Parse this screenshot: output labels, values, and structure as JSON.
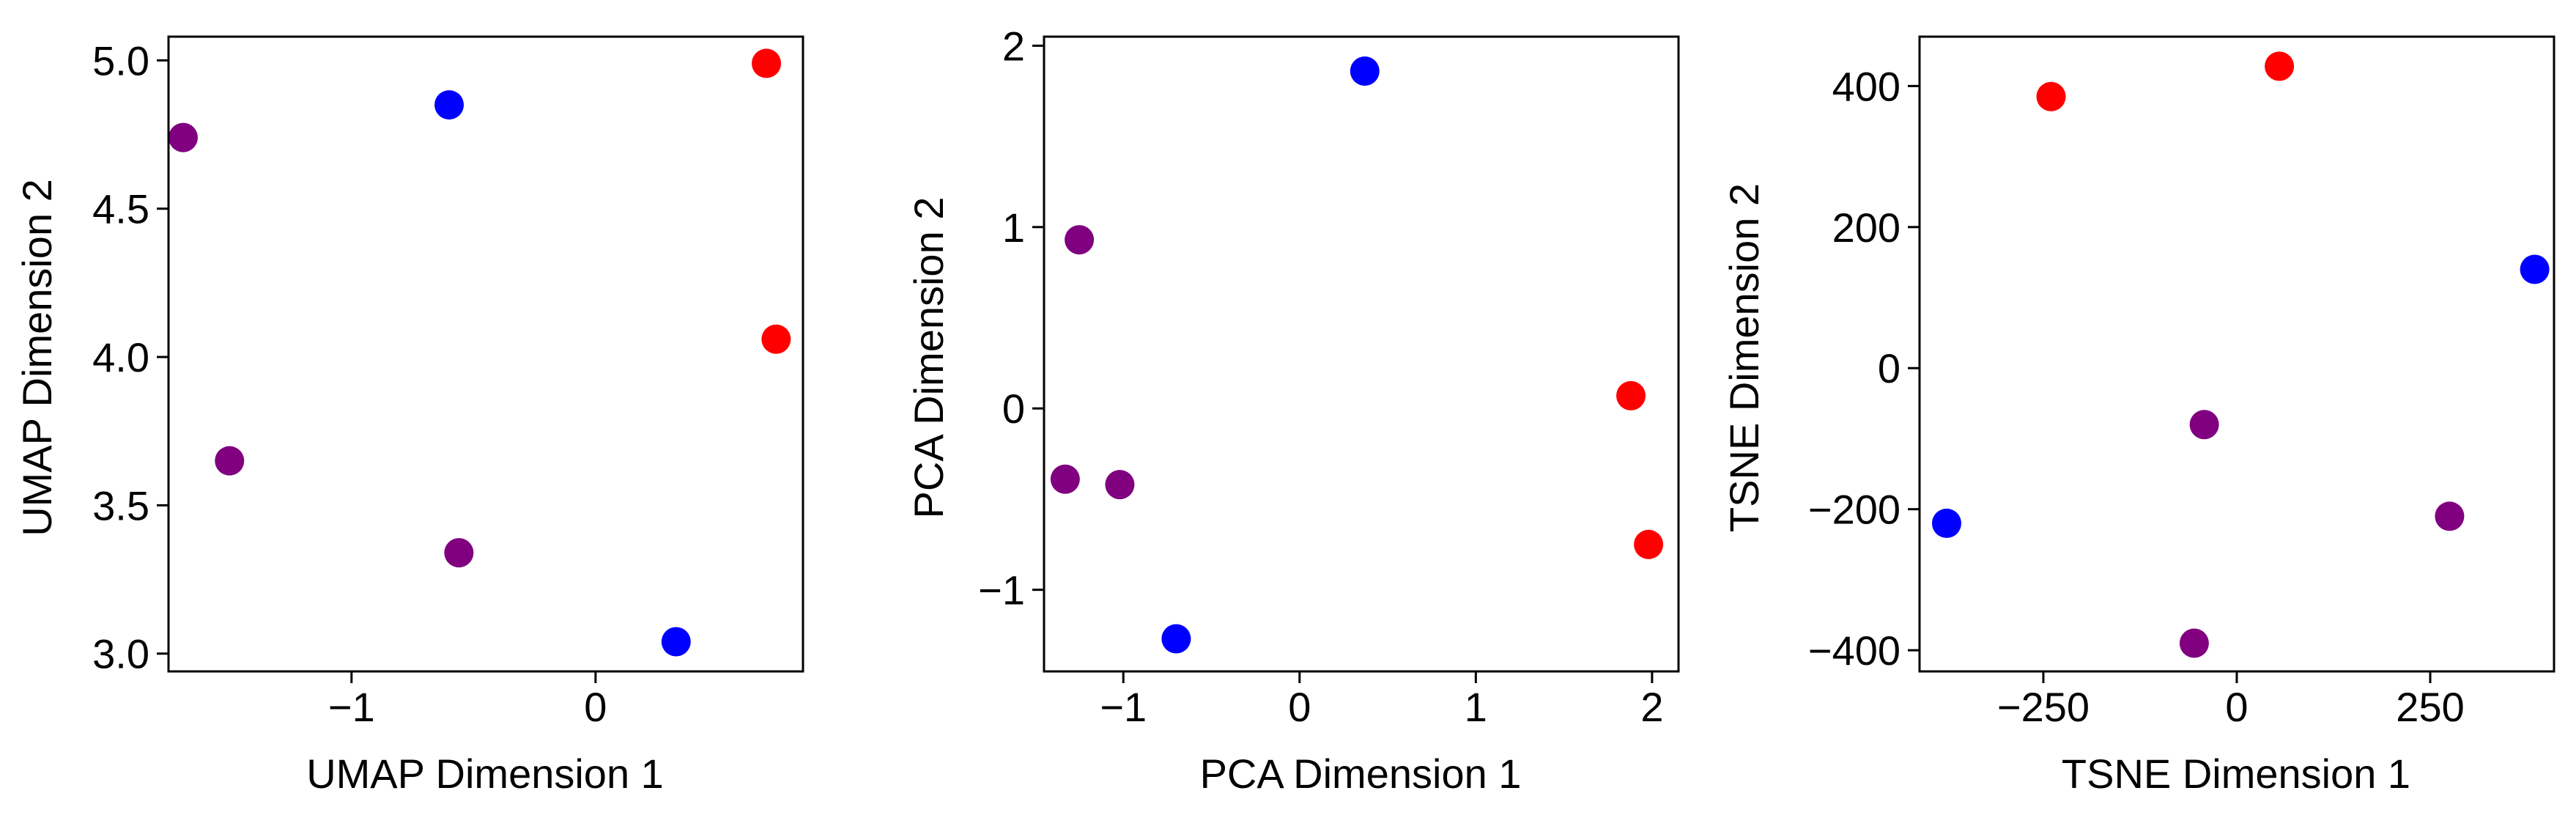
{
  "chart_data": [
    {
      "type": "scatter",
      "xlabel": "UMAP Dimension 1",
      "ylabel": "UMAP Dimension 2",
      "xlim": [
        -1.75,
        0.85
      ],
      "ylim": [
        2.94,
        5.08
      ],
      "xticks": [
        -1,
        0
      ],
      "xtick_labels": [
        "−1",
        "0"
      ],
      "yticks": [
        3.0,
        3.5,
        4.0,
        4.5,
        5.0
      ],
      "ytick_labels": [
        "3.0",
        "3.5",
        "4.0",
        "4.5",
        "5.0"
      ],
      "points": [
        {
          "x": 0.7,
          "y": 4.99,
          "color": "red"
        },
        {
          "x": 0.74,
          "y": 4.06,
          "color": "red"
        },
        {
          "x": -0.6,
          "y": 4.85,
          "color": "blue"
        },
        {
          "x": 0.33,
          "y": 3.04,
          "color": "blue"
        },
        {
          "x": -1.69,
          "y": 4.74,
          "color": "purple"
        },
        {
          "x": -1.5,
          "y": 3.65,
          "color": "purple"
        },
        {
          "x": -0.56,
          "y": 3.34,
          "color": "purple"
        }
      ]
    },
    {
      "type": "scatter",
      "xlabel": "PCA Dimension 1",
      "ylabel": "PCA Dimension 2",
      "xlim": [
        -1.45,
        2.15
      ],
      "ylim": [
        -1.45,
        2.05
      ],
      "xticks": [
        -1,
        0,
        1,
        2
      ],
      "xtick_labels": [
        "−1",
        "0",
        "1",
        "2"
      ],
      "yticks": [
        -1,
        0,
        1,
        2
      ],
      "ytick_labels": [
        "−1",
        "0",
        "1",
        "2"
      ],
      "points": [
        {
          "x": 1.88,
          "y": 0.07,
          "color": "red"
        },
        {
          "x": 1.98,
          "y": -0.75,
          "color": "red"
        },
        {
          "x": 0.37,
          "y": 1.86,
          "color": "blue"
        },
        {
          "x": -0.7,
          "y": -1.27,
          "color": "blue"
        },
        {
          "x": -1.25,
          "y": 0.93,
          "color": "purple"
        },
        {
          "x": -1.33,
          "y": -0.39,
          "color": "purple"
        },
        {
          "x": -1.02,
          "y": -0.42,
          "color": "purple"
        }
      ]
    },
    {
      "type": "scatter",
      "xlabel": "TSNE Dimension 1",
      "ylabel": "TSNE Dimension 2",
      "xlim": [
        -410,
        410
      ],
      "ylim": [
        -430,
        470
      ],
      "xticks": [
        -250,
        0,
        250
      ],
      "xtick_labels": [
        "−250",
        "0",
        "250"
      ],
      "yticks": [
        -400,
        -200,
        0,
        200,
        400
      ],
      "ytick_labels": [
        "−400",
        "−200",
        "0",
        "200",
        "400"
      ],
      "points": [
        {
          "x": -240,
          "y": 385,
          "color": "red"
        },
        {
          "x": 55,
          "y": 428,
          "color": "red"
        },
        {
          "x": 385,
          "y": 140,
          "color": "blue"
        },
        {
          "x": -375,
          "y": -220,
          "color": "blue"
        },
        {
          "x": -42,
          "y": -80,
          "color": "purple"
        },
        {
          "x": 275,
          "y": -210,
          "color": "purple"
        },
        {
          "x": -55,
          "y": -390,
          "color": "purple"
        }
      ]
    }
  ],
  "colors": {
    "red": "#ff0000",
    "blue": "#0000ff",
    "purple": "#800080"
  }
}
